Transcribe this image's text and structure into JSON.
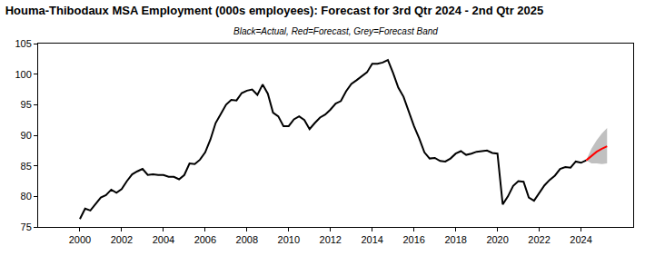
{
  "chart_data": {
    "type": "line",
    "title": "Houma-Thibodaux MSA Employment (000s employees): Forecast for 3rd Qtr 2024 - 2nd Qtr 2025",
    "subtitle": "Black=Actual, Red=Forecast, Grey=Forecast Band",
    "xlim": [
      1998,
      2026.5
    ],
    "xticks": [
      2000,
      2002,
      2004,
      2006,
      2008,
      2010,
      2012,
      2014,
      2016,
      2018,
      2020,
      2022,
      2024
    ],
    "ylim": [
      75,
      105
    ],
    "yticks": [
      75,
      80,
      85,
      90,
      95,
      100,
      105
    ],
    "grid": false,
    "series": [
      {
        "name": "Grey=Forecast Band",
        "type": "band",
        "color": "#c0c0c0",
        "x": [
          2024.25,
          2024.5,
          2024.75,
          2025.0,
          2025.25
        ],
        "lower": [
          85.9,
          85.4,
          85.4,
          85.3,
          85.4
        ],
        "upper": [
          85.9,
          87.8,
          89.2,
          90.3,
          91.2
        ]
      },
      {
        "name": "Black=Actual",
        "type": "line",
        "color": "#000000",
        "line_style": "solid",
        "x": [
          2000.0,
          2000.25,
          2000.5,
          2000.75,
          2001.0,
          2001.25,
          2001.5,
          2001.75,
          2002.0,
          2002.25,
          2002.5,
          2002.75,
          2003.0,
          2003.25,
          2003.5,
          2003.75,
          2004.0,
          2004.25,
          2004.5,
          2004.75,
          2005.0,
          2005.25,
          2005.5,
          2005.75,
          2006.0,
          2006.25,
          2006.5,
          2006.75,
          2007.0,
          2007.25,
          2007.5,
          2007.75,
          2008.0,
          2008.25,
          2008.5,
          2008.75,
          2009.0,
          2009.25,
          2009.5,
          2009.75,
          2010.0,
          2010.25,
          2010.5,
          2010.75,
          2011.0,
          2011.25,
          2011.5,
          2011.75,
          2012.0,
          2012.25,
          2012.5,
          2012.75,
          2013.0,
          2013.25,
          2013.5,
          2013.75,
          2014.0,
          2014.25,
          2014.5,
          2014.75,
          2015.0,
          2015.25,
          2015.5,
          2015.75,
          2016.0,
          2016.25,
          2016.5,
          2016.75,
          2017.0,
          2017.25,
          2017.5,
          2017.75,
          2018.0,
          2018.25,
          2018.5,
          2018.75,
          2019.0,
          2019.25,
          2019.5,
          2019.75,
          2020.0,
          2020.25,
          2020.5,
          2020.75,
          2021.0,
          2021.25,
          2021.5,
          2021.75,
          2022.0,
          2022.25,
          2022.5,
          2022.75,
          2023.0,
          2023.25,
          2023.5,
          2023.75,
          2024.0,
          2024.25
        ],
        "values": [
          76.3,
          78.0,
          77.7,
          78.7,
          79.8,
          80.2,
          81.1,
          80.6,
          81.2,
          82.5,
          83.6,
          84.1,
          84.5,
          83.5,
          83.6,
          83.5,
          83.5,
          83.2,
          83.2,
          82.8,
          83.5,
          85.4,
          85.3,
          86.0,
          87.2,
          89.3,
          92.0,
          93.5,
          95.0,
          95.8,
          95.7,
          96.9,
          97.3,
          97.5,
          96.6,
          98.3,
          96.8,
          93.7,
          93.1,
          91.5,
          91.5,
          92.6,
          93.1,
          92.5,
          91.0,
          92.0,
          92.9,
          93.4,
          94.2,
          95.2,
          95.6,
          97.2,
          98.4,
          99.0,
          99.7,
          100.3,
          101.7,
          101.7,
          101.9,
          102.3,
          100.2,
          97.8,
          96.3,
          93.8,
          91.5,
          89.5,
          87.2,
          86.2,
          86.3,
          85.8,
          85.7,
          86.2,
          87.0,
          87.4,
          86.8,
          87.0,
          87.3,
          87.4,
          87.5,
          87.1,
          87.0,
          78.7,
          80.0,
          81.7,
          82.5,
          82.4,
          79.8,
          79.3,
          80.5,
          81.8,
          82.7,
          83.4,
          84.5,
          84.8,
          84.7,
          85.7,
          85.5,
          85.9
        ]
      },
      {
        "name": "Red=Forecast",
        "type": "line",
        "color": "#ff0000",
        "line_style": "solid",
        "x": [
          2024.25,
          2024.5,
          2024.75,
          2025.0,
          2025.25
        ],
        "values": [
          85.9,
          86.6,
          87.3,
          87.8,
          88.2
        ]
      }
    ]
  }
}
